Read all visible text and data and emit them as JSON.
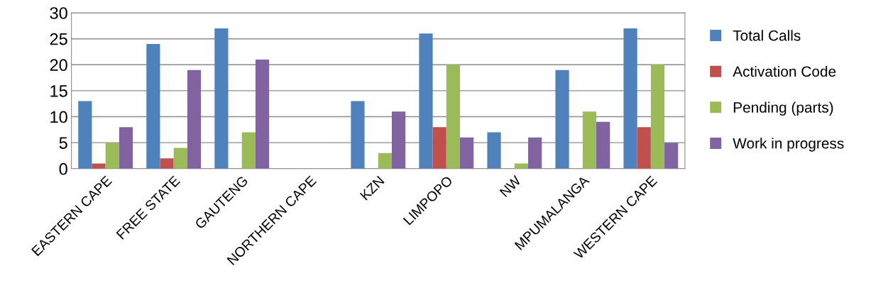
{
  "chart_data": {
    "type": "bar",
    "categories": [
      "EASTERN CAPE",
      "FREE STATE",
      "GAUTENG",
      "NORTHERN CAPE",
      "KZN",
      "LIMPOPO",
      "NW",
      "MPUMALANGA",
      "WESTERN CAPE"
    ],
    "series": [
      {
        "name": "Total Calls",
        "color": "#4f81bd",
        "values": [
          13,
          24,
          27,
          null,
          13,
          26,
          7,
          19,
          27
        ]
      },
      {
        "name": "Activation Code",
        "color": "#c0504d",
        "values": [
          1,
          2,
          null,
          null,
          null,
          8,
          null,
          null,
          8
        ]
      },
      {
        "name": "Pending (parts)",
        "color": "#9bbb59",
        "values": [
          5,
          4,
          7,
          null,
          3,
          20,
          1,
          11,
          20
        ]
      },
      {
        "name": "Work in progress",
        "color": "#8064a2",
        "values": [
          8,
          19,
          21,
          null,
          11,
          6,
          6,
          9,
          5
        ]
      }
    ],
    "ylim": [
      0,
      30
    ],
    "yticks": [
      0,
      5,
      10,
      15,
      20,
      25,
      30
    ],
    "grid": "y",
    "legend": "right"
  }
}
